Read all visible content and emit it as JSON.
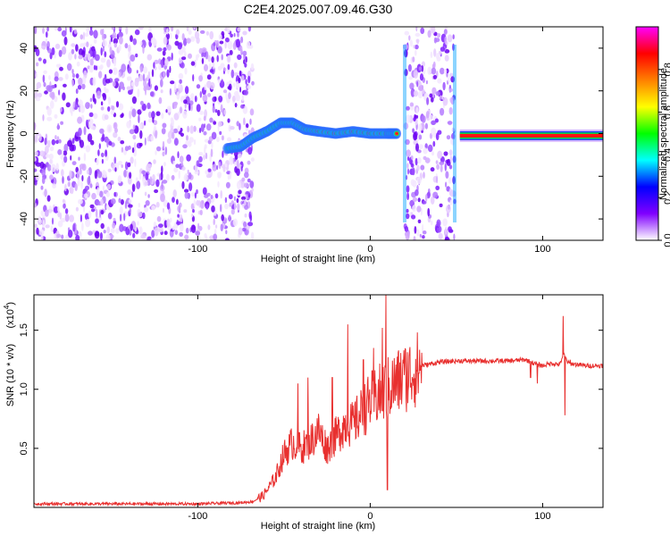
{
  "title": "C2E4.2025.007.09.46.G30",
  "chart_data": [
    {
      "type": "heatmap",
      "xlabel": "Height of straight line (km)",
      "ylabel": "Frequency (Hz)",
      "xlim": [
        -195,
        135
      ],
      "ylim": [
        -50,
        50
      ],
      "xticks": [
        -100,
        0,
        100
      ],
      "yticks": [
        -40,
        -20,
        0,
        20,
        40
      ],
      "grid": false,
      "features": {
        "noise_regions_km": [
          [
            -195,
            -68
          ],
          [
            20,
            49
          ]
        ],
        "signal_track": [
          [
            -83,
            -7
          ],
          [
            -75,
            -6
          ],
          [
            -68,
            -2
          ],
          [
            -60,
            1
          ],
          [
            -52,
            5
          ],
          [
            -45,
            5
          ],
          [
            -38,
            2
          ],
          [
            -30,
            1
          ],
          [
            -20,
            0
          ],
          [
            -10,
            1
          ],
          [
            0,
            0
          ],
          [
            10,
            0
          ],
          [
            16,
            0
          ]
        ],
        "steady_signal_km": [
          52,
          135
        ],
        "steady_signal_freq_hz": -1
      },
      "colorbar": {
        "label": "Normalized spectral amplitude",
        "range": [
          0,
          1
        ],
        "ticks": [
          0.0,
          0.2,
          0.4,
          0.6,
          0.8
        ],
        "colormap": [
          "#ffffff",
          "#8000ff",
          "#0000ff",
          "#00ffff",
          "#00ff00",
          "#ffff00",
          "#ff8000",
          "#ff0000",
          "#ff00ff"
        ]
      }
    },
    {
      "type": "line",
      "xlabel": "Height of straight line (km)",
      "ylabel": "SNR (10 * v/v)",
      "y_multiplier": "(x10",
      "y_multiplier_exp": "4",
      "y_multiplier_close": ")",
      "xlim": [
        -195,
        135
      ],
      "ylim": [
        0,
        1.8
      ],
      "xticks": [
        -100,
        0,
        100
      ],
      "yticks": [
        0.5,
        1.0,
        1.5
      ],
      "ytick_labels": [
        "0.5",
        "1.0",
        "1.5"
      ],
      "grid": false,
      "series": [
        {
          "color": "#e8302f",
          "x": [
            -195,
            -150,
            -100,
            -75,
            -68,
            -62,
            -55,
            -50,
            -45,
            -40,
            -35,
            -30,
            -25,
            -20,
            -15,
            -10,
            -5,
            0,
            5,
            10,
            15,
            20,
            25,
            30,
            40,
            50,
            60,
            70,
            80,
            90,
            95,
            100,
            105,
            110,
            112,
            115,
            120,
            125,
            130,
            135
          ],
          "y": [
            0.03,
            0.03,
            0.03,
            0.04,
            0.05,
            0.1,
            0.25,
            0.45,
            0.55,
            0.5,
            0.55,
            0.65,
            0.5,
            0.6,
            0.7,
            0.7,
            0.8,
            0.9,
            0.95,
            1.0,
            1.05,
            1.1,
            1.15,
            1.2,
            1.23,
            1.24,
            1.24,
            1.24,
            1.24,
            1.25,
            1.22,
            1.2,
            1.22,
            1.21,
            1.3,
            1.22,
            1.21,
            1.2,
            1.2,
            1.2
          ],
          "spikes": [
            [
              -42,
              1.05
            ],
            [
              -36,
              1.1
            ],
            [
              -22,
              1.1
            ],
            [
              -13,
              1.55
            ],
            [
              -4,
              1.25
            ],
            [
              2,
              1.35
            ],
            [
              7,
              1.52
            ],
            [
              9,
              1.8
            ],
            [
              10,
              0.15
            ],
            [
              19,
              1.25
            ],
            [
              93,
              1.1
            ],
            [
              97,
              1.05
            ],
            [
              112,
              1.62
            ],
            [
              113,
              0.78
            ],
            [
              116,
              1.25
            ]
          ]
        }
      ]
    }
  ]
}
